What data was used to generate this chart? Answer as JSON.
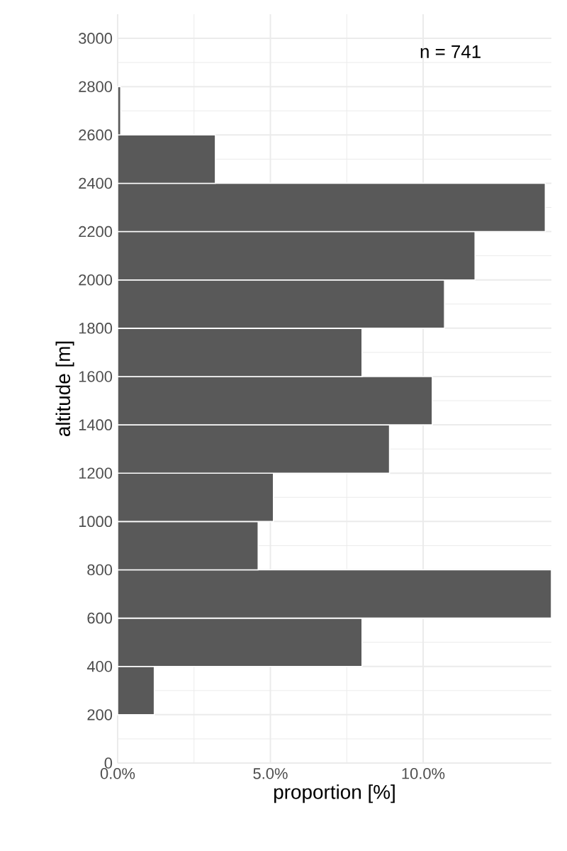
{
  "chart_data": {
    "type": "histogram",
    "orientation": "horizontal",
    "xlabel": "proportion [%]",
    "ylabel": "altitude [m]",
    "bins": [
      200,
      400,
      600,
      800,
      1000,
      1200,
      1400,
      1600,
      1800,
      2000,
      2200,
      2400,
      2600,
      2800
    ],
    "values": [
      1.2,
      8.0,
      14.2,
      4.6,
      5.1,
      8.9,
      10.3,
      8.0,
      10.7,
      11.7,
      14.0,
      3.2,
      0.1
    ],
    "color": "#595959",
    "xlim": [
      0,
      14.2
    ],
    "xticks": [
      {
        "value": 0,
        "label": "0.0%"
      },
      {
        "value": 5,
        "label": "5.0%"
      },
      {
        "value": 10,
        "label": "10.0%"
      }
    ],
    "ylim": [
      0,
      3100
    ],
    "yticks": [
      0,
      200,
      400,
      600,
      800,
      1000,
      1200,
      1400,
      1600,
      1800,
      2000,
      2200,
      2400,
      2600,
      2800,
      3000
    ],
    "grid": true,
    "annotations": [
      "n = 741"
    ]
  }
}
